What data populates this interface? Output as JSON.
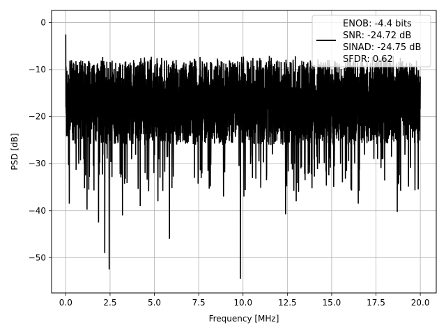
{
  "chart_data": {
    "type": "line",
    "title": "",
    "xlabel": "Frequency [MHz]",
    "ylabel": "PSD [dB]",
    "xlim": [
      -0.8,
      20.9
    ],
    "ylim": [
      -57.5,
      2.6
    ],
    "xticks": [
      0.0,
      2.5,
      5.0,
      7.5,
      10.0,
      12.5,
      15.0,
      17.5,
      20.0
    ],
    "xtick_labels": [
      "0.0",
      "2.5",
      "5.0",
      "7.5",
      "10.0",
      "12.5",
      "15.0",
      "17.5",
      "20.0"
    ],
    "yticks": [
      0,
      -10,
      -20,
      -30,
      -40,
      -50
    ],
    "ytick_labels": [
      "0",
      "−10",
      "−20",
      "−30",
      "−40",
      "−50"
    ],
    "grid": true,
    "legend_position": "top-right",
    "line_color": "#000000",
    "legend": [
      "ENOB: -4.4 bits",
      "SNR: -24.72 dB",
      "SINAD: -24.75 dB",
      "SFDR: 0.62"
    ],
    "series": [
      {
        "name": "ENOB: -4.4 bits",
        "description": "noise-like power spectral density, dense oscillation roughly between -8 and -28 dB",
        "x_range": [
          0.0,
          20.0
        ],
        "typical_upper_dB": -8,
        "typical_lower_dB": -28,
        "peak": {
          "x": 0.0,
          "y": -2.5
        },
        "notable_dips": [
          {
            "x": 0.2,
            "y": -38.5
          },
          {
            "x": 1.2,
            "y": -39.8
          },
          {
            "x": 1.85,
            "y": -42.5
          },
          {
            "x": 2.2,
            "y": -49.0
          },
          {
            "x": 2.45,
            "y": -52.5
          },
          {
            "x": 3.2,
            "y": -41.0
          },
          {
            "x": 4.2,
            "y": -39.0
          },
          {
            "x": 5.2,
            "y": -38.0
          },
          {
            "x": 5.85,
            "y": -46.0
          },
          {
            "x": 8.9,
            "y": -37.0
          },
          {
            "x": 9.85,
            "y": -54.5
          },
          {
            "x": 10.05,
            "y": -37.0
          },
          {
            "x": 12.4,
            "y": -40.8
          },
          {
            "x": 13.0,
            "y": -38.0
          },
          {
            "x": 16.5,
            "y": -38.5
          },
          {
            "x": 18.7,
            "y": -40.3
          }
        ]
      }
    ]
  }
}
